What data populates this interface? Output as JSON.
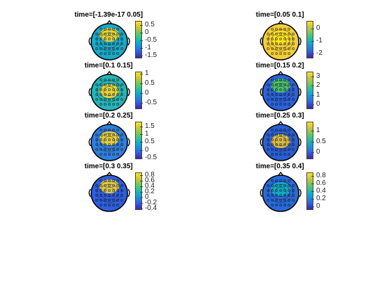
{
  "chart_data": [
    {
      "type": "heatmap",
      "title": "time=[-1.39e-17 0.05]",
      "colorbar": {
        "ticks": [
          0.5,
          0,
          -0.5,
          -1,
          -1.5
        ],
        "range": [
          -1.7,
          0.8
        ]
      },
      "dominant_color": "#1aa9c9",
      "hot_color": "#f4d72c"
    },
    {
      "type": "heatmap",
      "title": "time=[0.05 0.1]",
      "colorbar": {
        "ticks": [
          0,
          -1,
          -2
        ],
        "range": [
          -2.4,
          0.6
        ]
      },
      "dominant_color": "#f2cf3b",
      "hot_color": "#fbe522"
    },
    {
      "type": "heatmap",
      "title": "time=[0.1 0.15]",
      "colorbar": {
        "ticks": [
          1,
          0.5,
          0,
          -0.5
        ],
        "range": [
          -0.8,
          1.1
        ]
      },
      "dominant_color": "#25b5b8",
      "hot_color": "#f4d72c"
    },
    {
      "type": "heatmap",
      "title": "time=[0.15 0.2]",
      "colorbar": {
        "ticks": [
          3,
          2,
          1,
          0
        ],
        "range": [
          -0.5,
          3.5
        ]
      },
      "dominant_color": "#2c63d9",
      "hot_color": "#50c766"
    },
    {
      "type": "heatmap",
      "title": "time=[0.2 0.25]",
      "colorbar": {
        "ticks": [
          1.5,
          1,
          0.5,
          0,
          -0.5
        ],
        "range": [
          -0.6,
          1.8
        ]
      },
      "dominant_color": "#2f7fe0",
      "hot_color": "#f6d630"
    },
    {
      "type": "heatmap",
      "title": "time=[0.25 0.3]",
      "colorbar": {
        "ticks": [
          1,
          0.5,
          0
        ],
        "range": [
          -0.3,
          1.4
        ]
      },
      "dominant_color": "#2b5fd4",
      "hot_color": "#e8c43c"
    },
    {
      "type": "heatmap",
      "title": "time=[0.3 0.35]",
      "colorbar": {
        "ticks": [
          0.8,
          0.6,
          0.4,
          0.2,
          0,
          -0.2,
          -0.4
        ],
        "range": [
          -0.45,
          0.9
        ]
      },
      "dominant_color": "#2e5ee0",
      "hot_color": "#f3d53a"
    },
    {
      "type": "heatmap",
      "title": "time=[0.35 0.4]",
      "colorbar": {
        "ticks": [
          0.8,
          0.6,
          0.4,
          0.2,
          0
        ],
        "range": [
          -0.1,
          0.9
        ]
      },
      "dominant_color": "#2a6ad8",
      "hot_color": "#13b2c4"
    }
  ]
}
